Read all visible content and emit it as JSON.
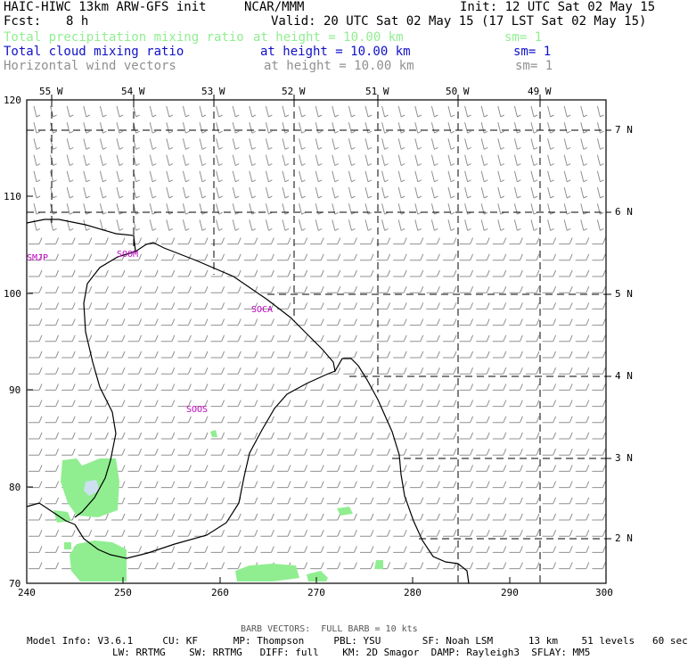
{
  "header": {
    "model_title": "HAIC-HIWC 13km ARW-GFS init",
    "center": "NCAR/MMM",
    "init": "Init: 12 UTC Sat 02 May 15",
    "fcst_label": "Fcst:",
    "fcst_value": "8 h",
    "valid": "Valid: 20 UTC Sat 02 May 15 (17 LST Sat 02 May 15)"
  },
  "fields": [
    {
      "name": "Total precipitation mixing ratio",
      "height": "at height = 10.00 km",
      "sm": "sm= 1",
      "color": "#90ee90"
    },
    {
      "name": "Total cloud mixing ratio",
      "height": "at height = 10.00 km",
      "sm": "sm= 1",
      "color": "#1010c8"
    },
    {
      "name": "Horizontal wind vectors",
      "height": "at height = 10.00 km",
      "sm": "sm= 1",
      "color": "#909090"
    }
  ],
  "axes": {
    "left_ticks": [
      "120",
      "110",
      "100",
      "90",
      "80",
      "70"
    ],
    "bottom_ticks": [
      "240",
      "250",
      "260",
      "270",
      "280",
      "290",
      "300"
    ],
    "lon_labels": [
      "55 W",
      "54 W",
      "53 W",
      "52 W",
      "51 W",
      "50 W",
      "49 W"
    ],
    "lat_labels": [
      "7 N",
      "6 N",
      "5 N",
      "4 N",
      "3 N",
      "2 N"
    ]
  },
  "stations": [
    "SMJP",
    "SOOM",
    "SOCA",
    "SOOS"
  ],
  "footer": {
    "barb_note": "BARB VECTORS:  FULL BARB = 10 kts",
    "line1": "Model Info: V3.6.1     CU: KF      MP: Thompson     PBL: YSU       SF: Noah LSM      13 km    51 levels   60 sec",
    "line2": "LW: RRTMG    SW: RRTMG   DIFF: full    KM: 2D Smagor  DAMP: Rayleigh3  SFLAY: MM5"
  },
  "colors": {
    "precip": "#90ee90",
    "cloud": "#cce0f0",
    "barb": "#909090",
    "station": "#c000c0",
    "coast": "#000000"
  }
}
